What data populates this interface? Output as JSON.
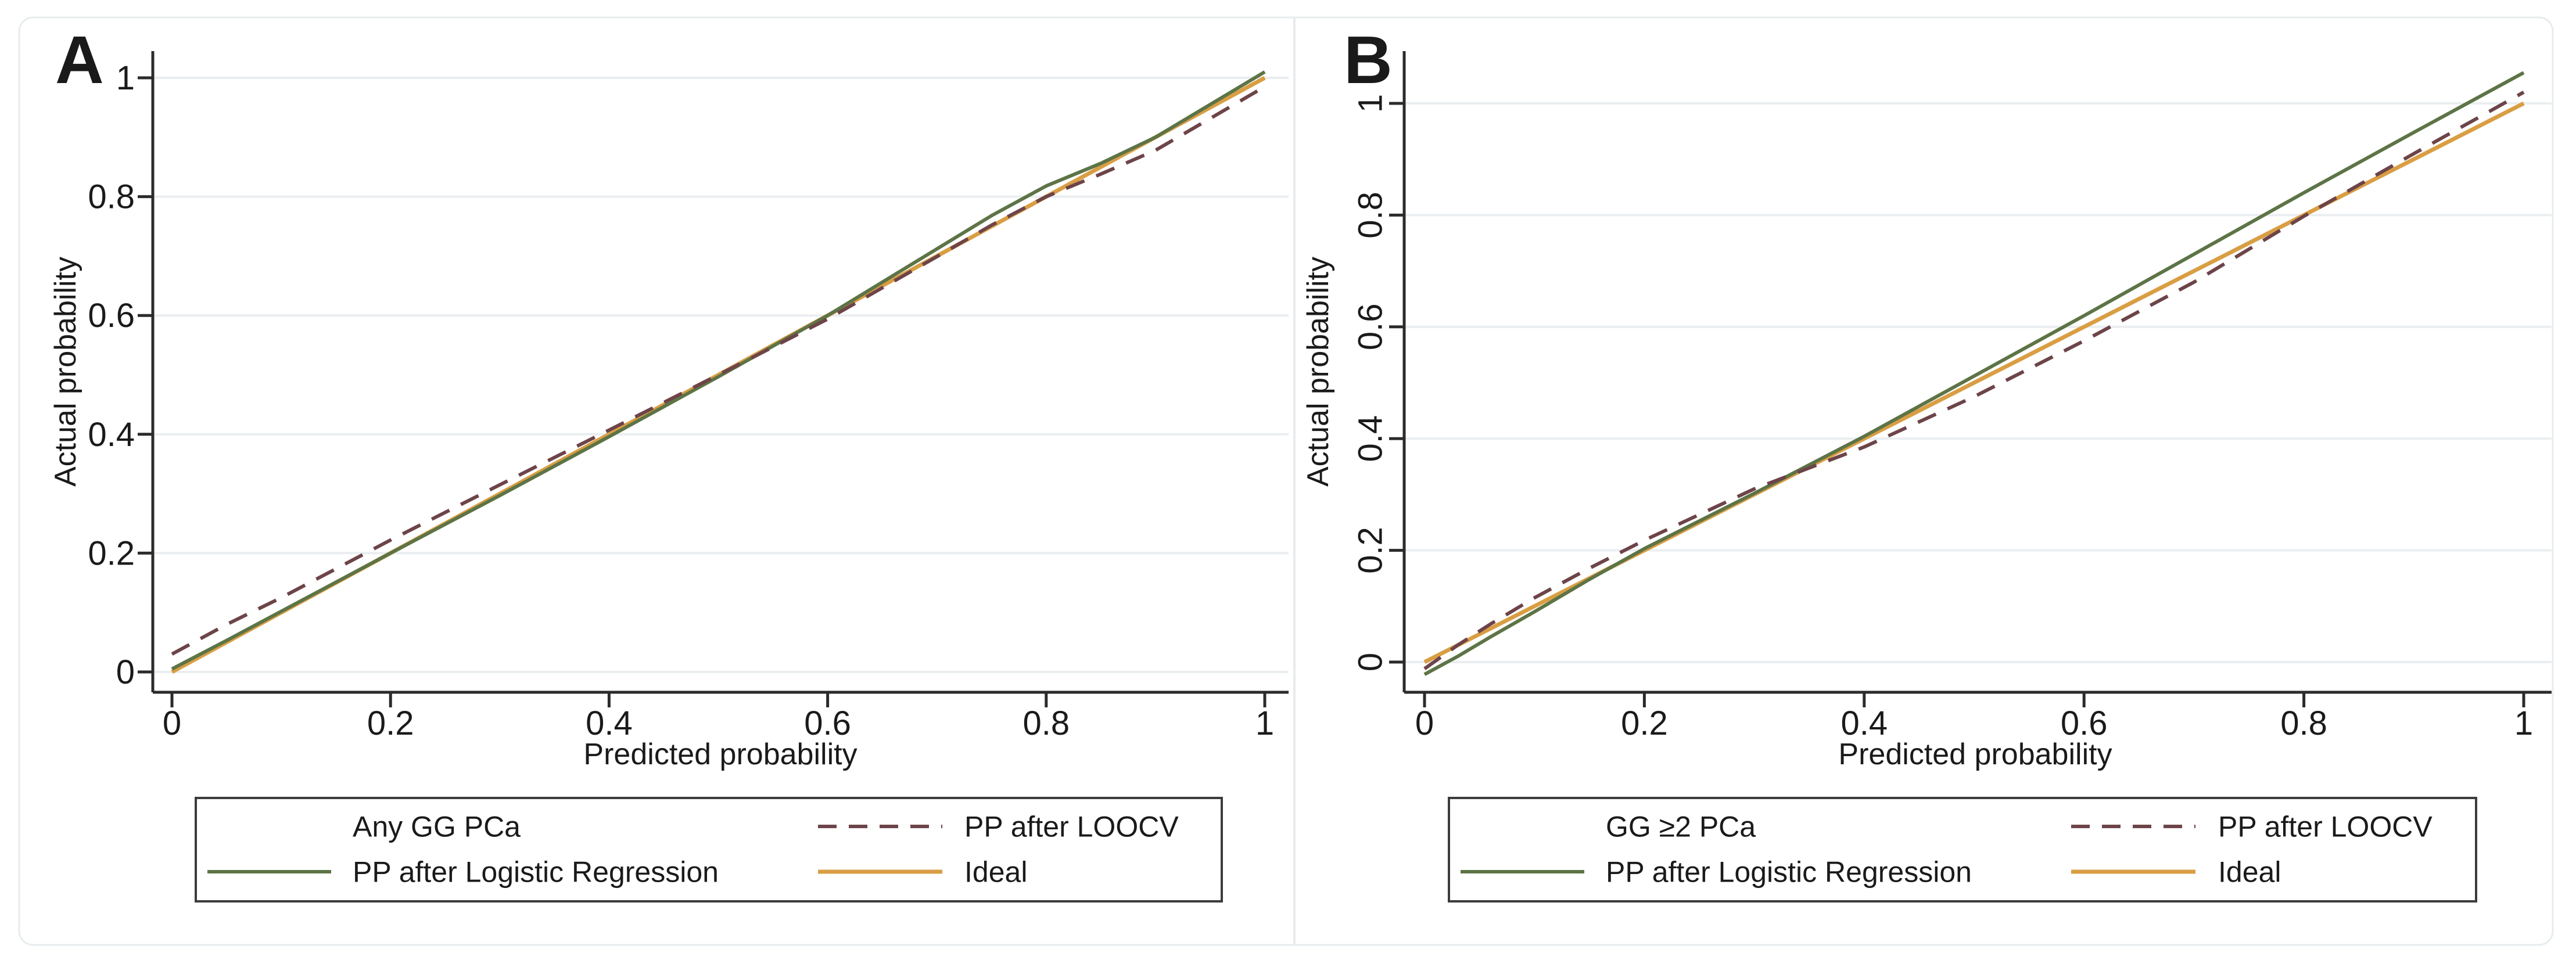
{
  "figure": {
    "description": "Calibration plots of predicted vs actual probability",
    "background_color": "#ffffff",
    "outer_border_color": "#e7ecee",
    "panel_divider_color": "#e7ebed",
    "axis_color": "#2b2b2b",
    "gridline_color": "#ebeef0",
    "legend_border_color": "#3c3c3c",
    "text_color": "#1a1a1a"
  },
  "chart_data": [
    {
      "type": "line",
      "panel_label": "A",
      "xlabel": "Predicted probability",
      "ylabel": "Actual probability",
      "xlim": [
        0,
        1
      ],
      "ylim": [
        0,
        1
      ],
      "grid": "horizontal",
      "ytick_labels_rotated": false,
      "xticks": [
        {
          "v": 0,
          "label": "0"
        },
        {
          "v": 0.2,
          "label": "0.2"
        },
        {
          "v": 0.4,
          "label": "0.4"
        },
        {
          "v": 0.6,
          "label": "0.6"
        },
        {
          "v": 0.8,
          "label": "0.8"
        },
        {
          "v": 1,
          "label": "1"
        }
      ],
      "yticks": [
        {
          "v": 0,
          "label": "0"
        },
        {
          "v": 0.2,
          "label": "0.2"
        },
        {
          "v": 0.4,
          "label": "0.4"
        },
        {
          "v": 0.6,
          "label": "0.6"
        },
        {
          "v": 0.8,
          "label": "0.8"
        },
        {
          "v": 1,
          "label": "1"
        }
      ],
      "series": [
        {
          "id": "ideal",
          "name": "Ideal",
          "color": "#d99e44",
          "dash": false,
          "width": 7,
          "x": [
            0,
            1
          ],
          "y": [
            0,
            1
          ]
        },
        {
          "id": "logreg",
          "name": "PP after Logistic Regression",
          "color": "#5d7446",
          "dash": false,
          "width": 6,
          "x": [
            0,
            0.05,
            0.1,
            0.2,
            0.3,
            0.4,
            0.5,
            0.6,
            0.7,
            0.75,
            0.8,
            0.85,
            0.9,
            1
          ],
          "y": [
            0.005,
            0.053,
            0.102,
            0.2,
            0.297,
            0.396,
            0.497,
            0.6,
            0.712,
            0.768,
            0.818,
            0.856,
            0.9,
            1.01
          ]
        },
        {
          "id": "loocv",
          "name": "PP after LOOCV",
          "color": "#6d4449",
          "dash": true,
          "width": 6,
          "x": [
            0,
            0.05,
            0.1,
            0.2,
            0.3,
            0.4,
            0.5,
            0.6,
            0.7,
            0.75,
            0.8,
            0.85,
            0.9,
            1
          ],
          "y": [
            0.03,
            0.08,
            0.125,
            0.222,
            0.315,
            0.407,
            0.5,
            0.594,
            0.699,
            0.752,
            0.8,
            0.838,
            0.878,
            0.985
          ]
        }
      ],
      "legend": {
        "rows": [
          [
            {
              "label": "Any GG PCa",
              "swatch": null
            },
            {
              "label": "PP after LOOCV",
              "swatch": "loocv"
            }
          ],
          [
            {
              "label": "PP after Logistic Regression",
              "swatch": "logreg"
            },
            {
              "label": "Ideal",
              "swatch": "ideal"
            }
          ]
        ]
      }
    },
    {
      "type": "line",
      "panel_label": "B",
      "xlabel": "Predicted probability",
      "ylabel": "Actual probability",
      "xlim": [
        0,
        1
      ],
      "ylim": [
        0,
        1
      ],
      "grid": "horizontal",
      "ytick_labels_rotated": true,
      "xticks": [
        {
          "v": 0,
          "label": "0"
        },
        {
          "v": 0.2,
          "label": "0.2"
        },
        {
          "v": 0.4,
          "label": "0.4"
        },
        {
          "v": 0.6,
          "label": "0.6"
        },
        {
          "v": 0.8,
          "label": "0.8"
        },
        {
          "v": 1,
          "label": "1"
        }
      ],
      "yticks": [
        {
          "v": 0,
          "label": "0"
        },
        {
          "v": 0.2,
          "label": "0.2"
        },
        {
          "v": 0.4,
          "label": "0.4"
        },
        {
          "v": 0.6,
          "label": "0.6"
        },
        {
          "v": 0.8,
          "label": "0.8"
        },
        {
          "v": 1,
          "label": "1"
        }
      ],
      "series": [
        {
          "id": "ideal",
          "name": "Ideal",
          "color": "#d99e44",
          "dash": false,
          "width": 7,
          "x": [
            0,
            1
          ],
          "y": [
            0,
            1
          ]
        },
        {
          "id": "logreg",
          "name": "PP after Logistic Regression",
          "color": "#5d7446",
          "dash": false,
          "width": 6,
          "x": [
            0,
            0.03,
            0.06,
            0.1,
            0.15,
            0.2,
            0.3,
            0.4,
            0.5,
            0.6,
            0.7,
            0.8,
            0.9,
            1
          ],
          "y": [
            -0.022,
            0.01,
            0.045,
            0.09,
            0.148,
            0.203,
            0.302,
            0.404,
            0.512,
            0.62,
            0.73,
            0.84,
            0.948,
            1.055
          ]
        },
        {
          "id": "loocv",
          "name": "PP after LOOCV",
          "color": "#6d4449",
          "dash": true,
          "width": 6,
          "x": [
            0,
            0.03,
            0.06,
            0.1,
            0.15,
            0.2,
            0.3,
            0.4,
            0.5,
            0.6,
            0.7,
            0.8,
            0.9,
            1
          ],
          "y": [
            -0.012,
            0.03,
            0.068,
            0.115,
            0.168,
            0.218,
            0.31,
            0.385,
            0.475,
            0.575,
            0.68,
            0.798,
            0.91,
            1.02
          ]
        }
      ],
      "legend": {
        "rows": [
          [
            {
              "label": "GG ≥2 PCa",
              "swatch": null
            },
            {
              "label": "PP after LOOCV",
              "swatch": "loocv"
            }
          ],
          [
            {
              "label": "PP after Logistic Regression",
              "swatch": "logreg"
            },
            {
              "label": "Ideal",
              "swatch": "ideal"
            }
          ]
        ]
      }
    }
  ]
}
